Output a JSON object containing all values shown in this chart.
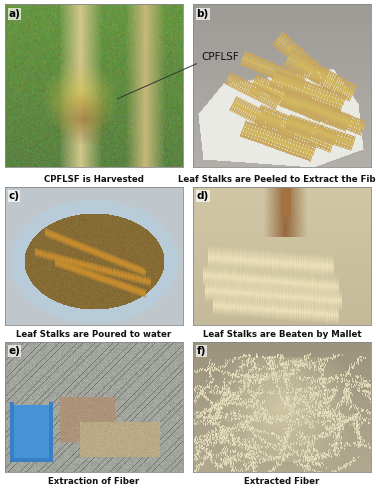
{
  "fig_width": 3.76,
  "fig_height": 5.0,
  "dpi": 100,
  "background_color": "#ffffff",
  "border_color": "#888888",
  "subplot_labels": [
    "a)",
    "b)",
    "c)",
    "d)",
    "e)",
    "f)"
  ],
  "subplot_captions": [
    "CPFLSF is Harvested",
    "Leaf Stalks are Peeled to Extract the Fiber",
    "Leaf Stalks are Poured to water",
    "Leaf Stalks are Beaten by Mallet",
    "Extraction of Fiber",
    "Extracted Fiber"
  ],
  "annotation_text": "CPFLSF",
  "caption_fontsize": 6.2,
  "label_fontsize": 7.5,
  "annotation_fontsize": 7.5,
  "panel_a_colors": {
    "sky": "#6aaa5a",
    "trunk1": "#d4c88a",
    "trunk2": "#c8b870",
    "trunk3": "#a89050",
    "leaf": "#8aaa40",
    "flower": "#d4c050",
    "bg": "#5a9040"
  },
  "panel_b_colors": {
    "bg_top": "#a0a890",
    "bg_bot": "#b0b8a0",
    "cloth": "#e8e8e0",
    "stalk1": "#c8a060",
    "stalk2": "#d4b070",
    "stalk3": "#b89050"
  },
  "panel_c_colors": {
    "tub_outer": "#c0d0e0",
    "water": "#8a7030",
    "stalk": "#c8a040"
  },
  "panel_d_colors": {
    "bg": "#c0b8a0",
    "stalk1": "#c8b880",
    "stalk2": "#d4c490",
    "mallet": "#a07040"
  },
  "panel_e_colors": {
    "floor": "#a0a090",
    "shadow": "#808070",
    "bucket": "#4070c0",
    "fiber": "#c8b870"
  },
  "panel_f_colors": {
    "bg": "#b8b090",
    "fiber": "#e0d8b0",
    "fiber2": "#d0c8a0"
  }
}
